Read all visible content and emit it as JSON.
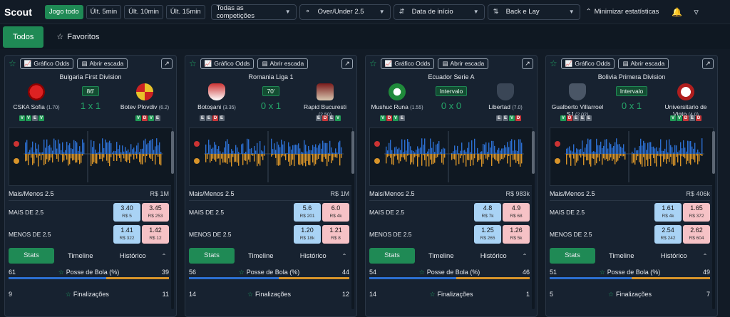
{
  "app": {
    "title": "Scout"
  },
  "filters": {
    "time_buttons": [
      "Jogo todo",
      "Últ. 5min",
      "Últ. 10min",
      "Últ. 15min"
    ],
    "competitions": "Todas as competições",
    "market": "Over/Under 2.5",
    "sort": "Data de início",
    "mode": "Back e Lay",
    "minimize": "Minimizar estatísticas"
  },
  "tabs": {
    "all": "Todos",
    "favorites": "Favoritos"
  },
  "card_labels": {
    "odds_chart": "Gráfico Odds",
    "open_ladder": "Abrir escada",
    "market": "Mais/Menos 2.5",
    "over": "MAIS DE 2.5",
    "under": "MENOS DE 2.5",
    "stats_tab": "Stats",
    "timeline_tab": "Timeline",
    "history_tab": "Histórico",
    "possession": "Posse de Bola (%)",
    "shots": "Finalizações"
  },
  "colors": {
    "accent": "#1f8a55",
    "back": "#a9d3f5",
    "lay": "#f6c2c6",
    "home_bar": "#2c6fd1",
    "away_bar": "#d8942a"
  },
  "cards": [
    {
      "league": "Bulgaria First Division",
      "home": {
        "name": "CSKA Sofia",
        "odd": "(1.70)",
        "form": [
          "V",
          "V",
          "E",
          "V"
        ],
        "crest": "cska-crest"
      },
      "away": {
        "name": "Botev Plovdiv",
        "odd": "(6.2)",
        "form": [
          "V",
          "D",
          "V",
          "E"
        ],
        "crest": "botev-crest"
      },
      "status": "86'",
      "score": "1 x 1",
      "volume": "R$ 1M",
      "over": {
        "back": "3.40",
        "back_vol": "R$ 5",
        "lay": "3.45",
        "lay_vol": "R$ 253"
      },
      "under": {
        "back": "1.41",
        "back_vol": "R$ 322",
        "lay": "1.42",
        "lay_vol": "R$ 12"
      },
      "possession": {
        "home": "61",
        "away": "39"
      },
      "shots": {
        "home": "9",
        "away": "11"
      }
    },
    {
      "league": "Romania Liga 1",
      "home": {
        "name": "Botoșani",
        "odd": "(3.35)",
        "form": [
          "E",
          "E",
          "D",
          "E"
        ],
        "crest": "botosani-crest"
      },
      "away": {
        "name": "Rapid Bucuresti",
        "odd": "(2.50)",
        "form": [
          "E",
          "D",
          "E",
          "V"
        ],
        "crest": "rapid-crest"
      },
      "status": "70'",
      "score": "0 x 1",
      "volume": "R$ 1M",
      "over": {
        "back": "5.6",
        "back_vol": "R$ 201",
        "lay": "6.0",
        "lay_vol": "R$ 4k"
      },
      "under": {
        "back": "1.20",
        "back_vol": "R$ 18k",
        "lay": "1.21",
        "lay_vol": "R$ 8"
      },
      "possession": {
        "home": "56",
        "away": "44"
      },
      "shots": {
        "home": "14",
        "away": "12"
      }
    },
    {
      "league": "Ecuador Serie A",
      "home": {
        "name": "Mushuc Runa",
        "odd": "(1.55)",
        "form": [
          "V",
          "D",
          "V",
          "E"
        ],
        "crest": "mushuc-crest"
      },
      "away": {
        "name": "Libertad",
        "odd": "(7.0)",
        "form": [
          "E",
          "E",
          "V",
          "D"
        ],
        "crest": "libertad-crest"
      },
      "status": "Intervalo",
      "score": "0 x 0",
      "volume": "R$ 983k",
      "over": {
        "back": "4.8",
        "back_vol": "R$ 7k",
        "lay": "4.9",
        "lay_vol": "R$ 68"
      },
      "under": {
        "back": "1.25",
        "back_vol": "R$ 265",
        "lay": "1.26",
        "lay_vol": "R$ 5k"
      },
      "possession": {
        "home": "54",
        "away": "46"
      },
      "shots": {
        "home": "14",
        "away": "1"
      }
    },
    {
      "league": "Bolivia Primera Division",
      "home": {
        "name": "Gualberto Villarroel SJ",
        "odd": "(2.02)",
        "form": [
          "V",
          "D",
          "E",
          "E",
          "E"
        ],
        "crest": "gualberto-crest"
      },
      "away": {
        "name": "Universitario de Vinto",
        "odd": "(4.0)",
        "form": [
          "V",
          "V",
          "D",
          "E",
          "D"
        ],
        "crest": "vinto-crest"
      },
      "status": "Intervalo",
      "score": "0 x 1",
      "volume": "R$ 406k",
      "over": {
        "back": "1.61",
        "back_vol": "R$ 4k",
        "lay": "1.65",
        "lay_vol": "R$ 372"
      },
      "under": {
        "back": "2.54",
        "back_vol": "R$ 242",
        "lay": "2.62",
        "lay_vol": "R$ 604"
      },
      "possession": {
        "home": "51",
        "away": "49"
      },
      "shots": {
        "home": "5",
        "away": "7"
      }
    }
  ]
}
